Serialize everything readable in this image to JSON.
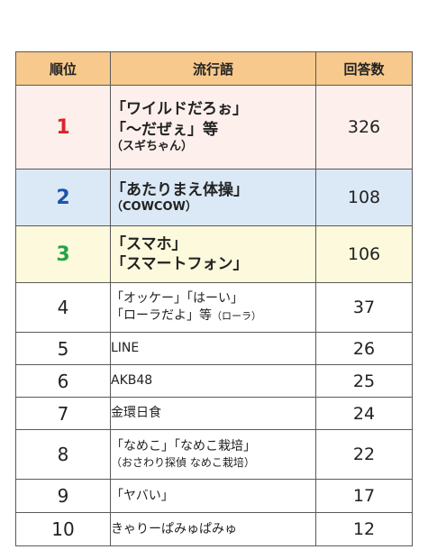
{
  "header": {
    "col_rank": "順位",
    "col_word": "流行語",
    "col_count": "回答数"
  },
  "colors": {
    "rank1": "#e2212a",
    "rank2": "#1a56a8",
    "rank3": "#27a24a",
    "header_bg": "#f7c98c"
  },
  "rows": [
    {
      "rank": "1",
      "line1": "「ワイルドだろぉ」",
      "line2": "「〜だぜぇ」等",
      "line3": "（スギちゃん）",
      "count": "326"
    },
    {
      "rank": "2",
      "line1": "「あたりまえ体操」",
      "line2": "（COWCOW）",
      "count": "108"
    },
    {
      "rank": "3",
      "line1": "「スマホ」",
      "line2": "「スマートフォン」",
      "count": "106"
    },
    {
      "rank": "4",
      "line1": "「オッケー」「はーい」",
      "line2": "「ローラだよ」等",
      "line2_small": "（ローラ）",
      "count": "37"
    },
    {
      "rank": "5",
      "line1": "LINE",
      "count": "26"
    },
    {
      "rank": "6",
      "line1": "AKB48",
      "count": "25"
    },
    {
      "rank": "7",
      "line1": "金環日食",
      "count": "24"
    },
    {
      "rank": "8",
      "line1": "「なめこ」「なめこ栽培」",
      "line2": "（おさわり探偵 なめこ栽培）",
      "count": "22"
    },
    {
      "rank": "9",
      "line1": "「ヤバい」",
      "count": "17"
    },
    {
      "rank": "10",
      "line1": "きゃりーぱみゅぱみゅ",
      "count": "12"
    }
  ]
}
